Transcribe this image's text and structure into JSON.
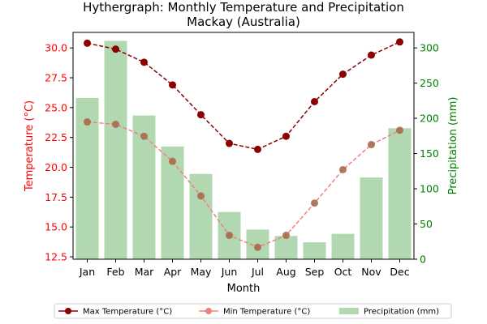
{
  "chart_data": {
    "type": "line",
    "title": "Hythergraph: Monthly Temperature and Precipitation",
    "subtitle": "Mackay (Australia)",
    "xlabel": "Month",
    "ylabel_left": "Temperature (°C)",
    "ylabel_right": "Precipitation (mm)",
    "categories": [
      "Jan",
      "Feb",
      "Mar",
      "Apr",
      "May",
      "Jun",
      "Jul",
      "Aug",
      "Sep",
      "Oct",
      "Nov",
      "Dec"
    ],
    "ylim_left": [
      12.3,
      31.3
    ],
    "ylim_right": [
      0,
      322
    ],
    "yticks_left": [
      "12.5",
      "15.0",
      "17.5",
      "20.0",
      "22.5",
      "25.0",
      "27.5",
      "30.0"
    ],
    "yticks_right": [
      "0",
      "50",
      "100",
      "150",
      "200",
      "250",
      "300"
    ],
    "grid": false,
    "legend_position": "bottom-center",
    "series": [
      {
        "name": "Max Temperature (°C)",
        "kind": "line",
        "axis": "left",
        "color": "#8b0000",
        "values": [
          30.4,
          29.9,
          28.8,
          26.9,
          24.4,
          22.0,
          21.5,
          22.6,
          25.5,
          27.8,
          29.4,
          30.5
        ]
      },
      {
        "name": "Min Temperature (°C)",
        "kind": "line",
        "axis": "left",
        "color": "#f08080",
        "values": [
          23.8,
          23.6,
          22.6,
          20.5,
          17.6,
          14.3,
          13.3,
          14.3,
          17.0,
          19.8,
          21.9,
          23.1
        ]
      },
      {
        "name": "Precipitation (mm)",
        "kind": "bar",
        "axis": "right",
        "color": "#b2d8b2",
        "values": [
          229,
          310,
          204,
          160,
          121,
          67,
          42,
          33,
          24,
          36,
          116,
          186
        ]
      }
    ],
    "colors": {
      "left_axis": "#ff0000",
      "right_axis": "#008000"
    }
  }
}
